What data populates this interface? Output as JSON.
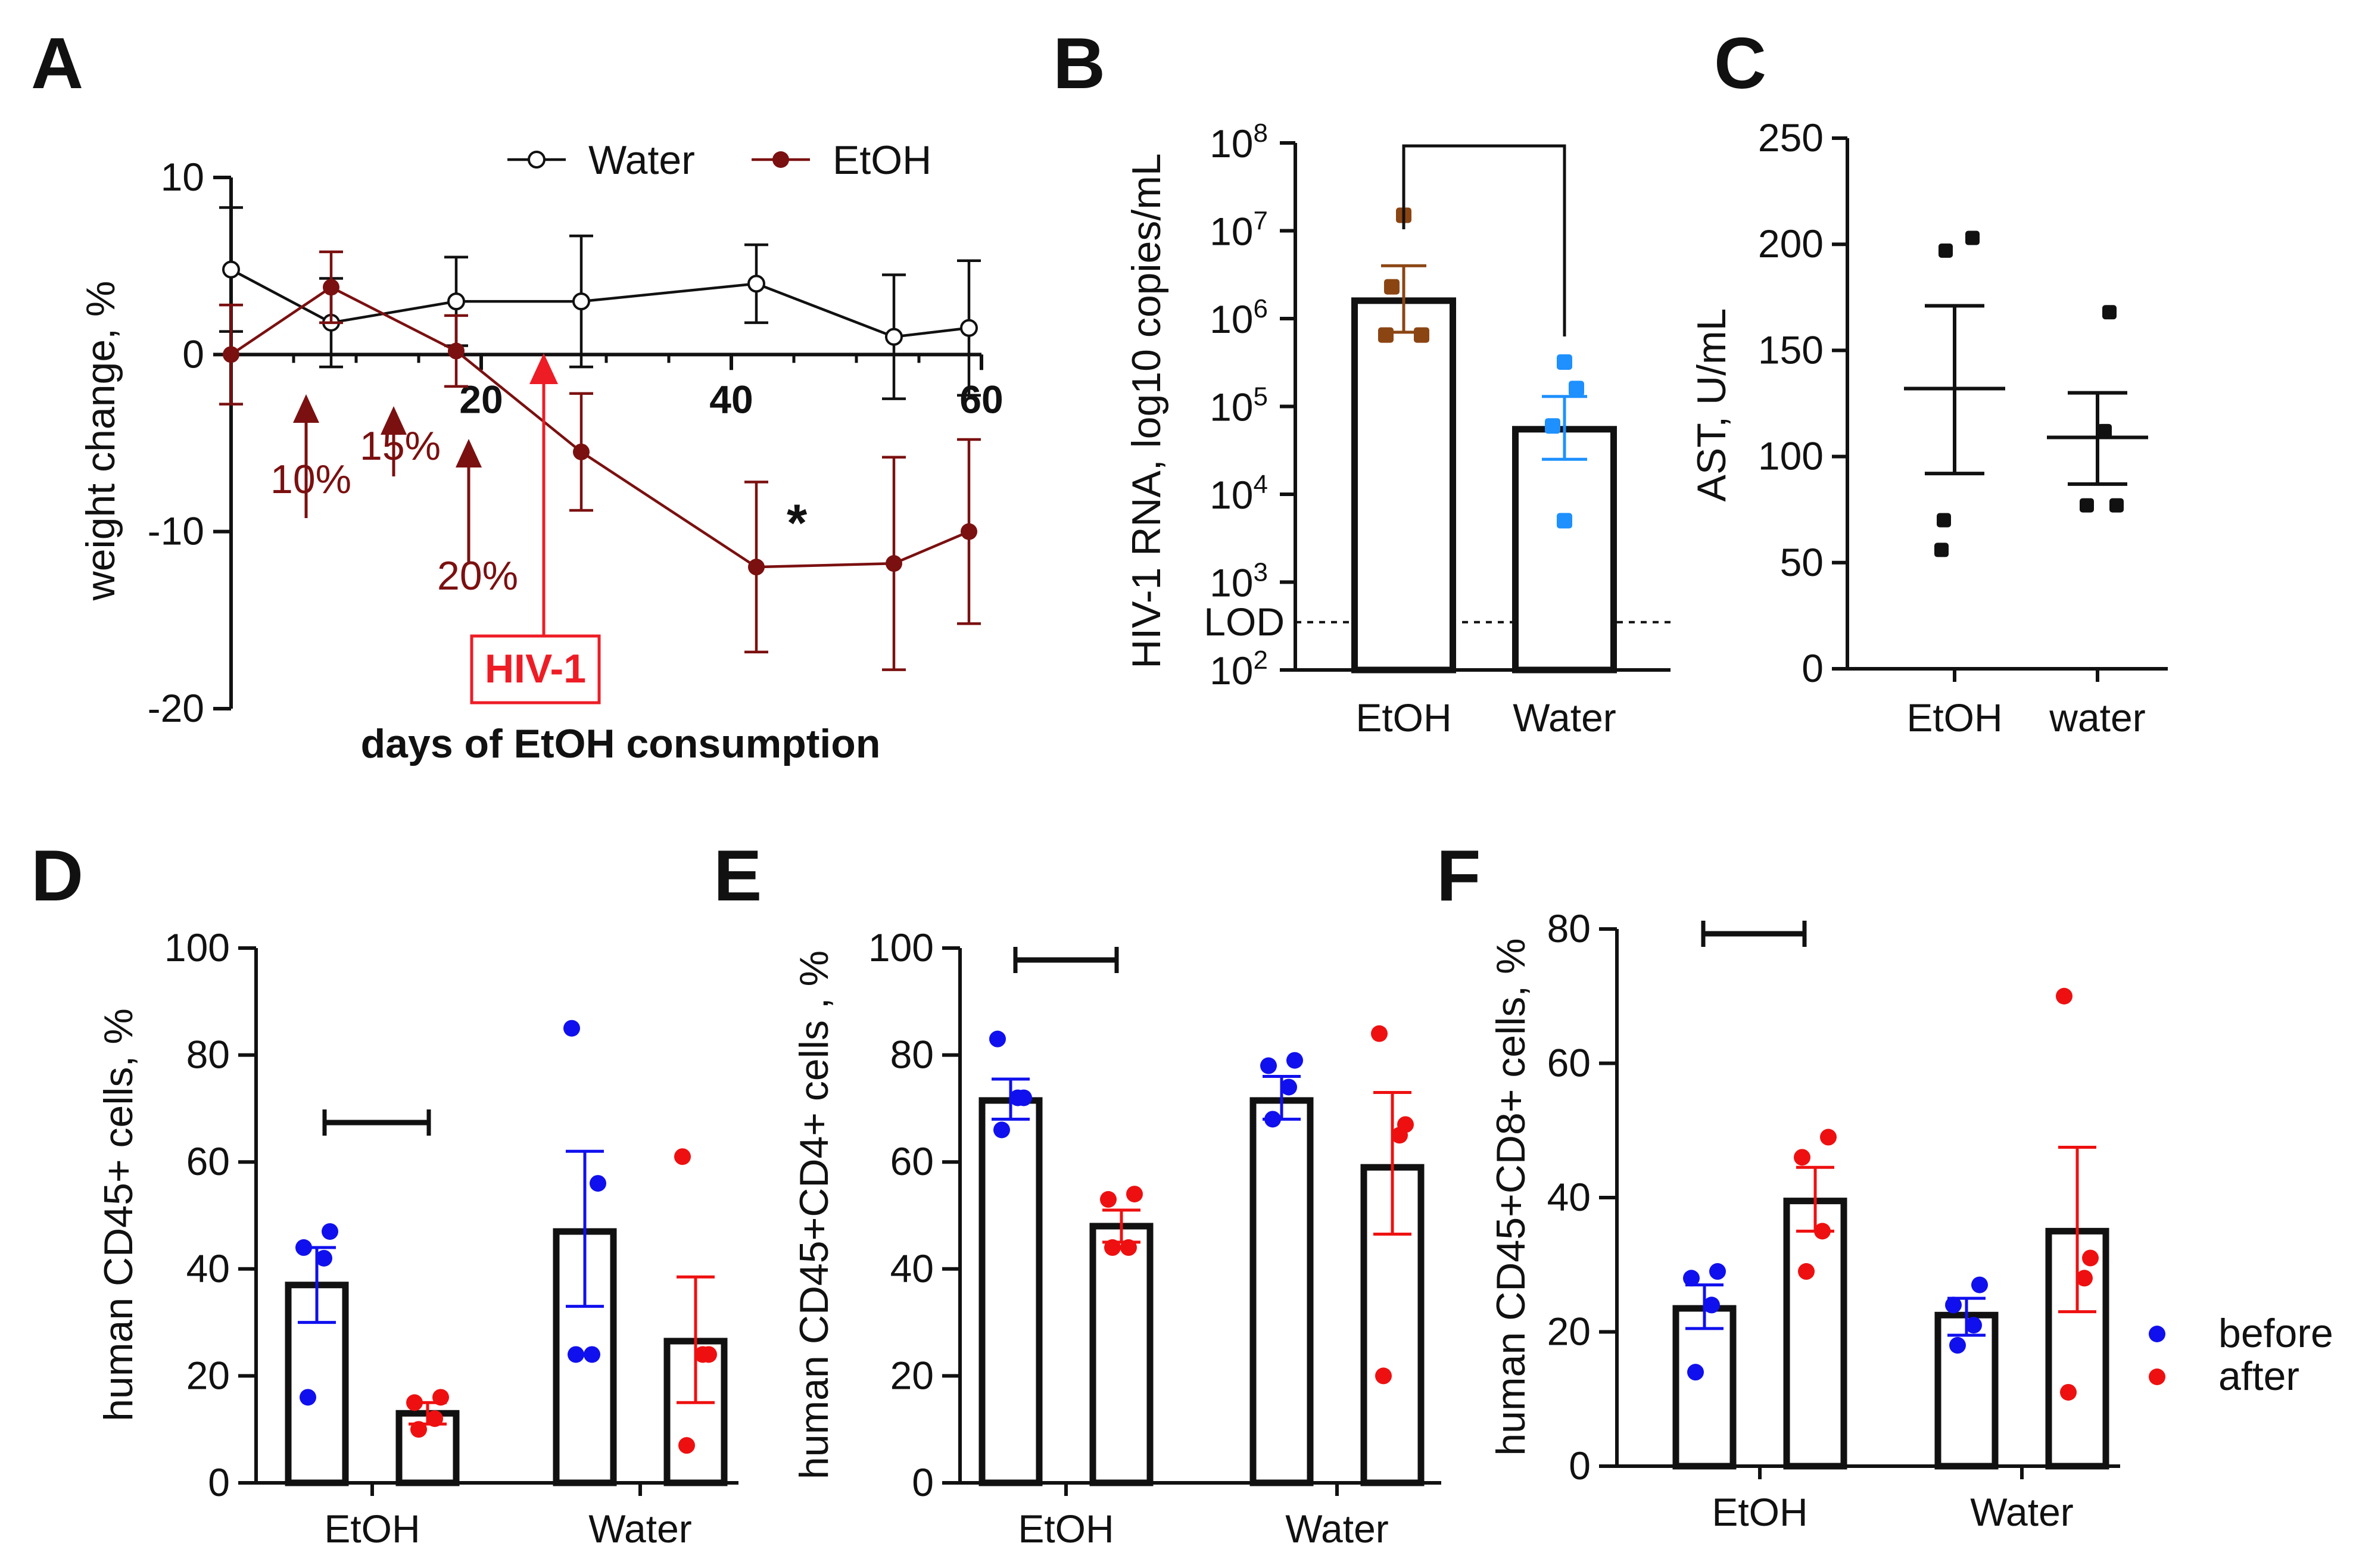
{
  "colors": {
    "water": "#111111",
    "etoh": "#7b1010",
    "hiv_red": "#ee1c25",
    "brown_point": "#8b4513",
    "blue_point": "#1e90ff",
    "before": "#1010ee",
    "after": "#ee1010"
  },
  "chart_data": [
    {
      "id": "A",
      "panel_label": "A",
      "type": "line",
      "xlabel": "days of EtOH consumption",
      "ylabel": "weight change, %",
      "xlim": [
        0,
        60
      ],
      "ylim": [
        -20,
        10
      ],
      "xticks": [
        "20",
        "40",
        "60"
      ],
      "yticks": [
        "10",
        "0",
        "-10",
        "-20"
      ],
      "series": [
        {
          "name": "Water",
          "x": [
            0,
            8,
            18,
            28,
            42,
            53,
            59
          ],
          "y": [
            4.8,
            1.8,
            3.0,
            3.0,
            4.0,
            1.0,
            1.5
          ],
          "err": [
            3.5,
            2.5,
            2.5,
            3.7,
            2.2,
            3.5,
            3.8
          ]
        },
        {
          "name": "EtOH",
          "x": [
            0,
            8,
            18,
            28,
            42,
            53,
            59
          ],
          "y": [
            0.0,
            3.8,
            0.2,
            -5.5,
            -12.0,
            -11.8,
            -10.0
          ],
          "err": [
            2.8,
            2.0,
            2.0,
            3.3,
            4.8,
            6.0,
            5.2
          ]
        }
      ],
      "annotations": {
        "concentration_steps": [
          {
            "label": "10%",
            "day": 6
          },
          {
            "label": "15%",
            "day": 13
          },
          {
            "label": "20%",
            "day": 19
          }
        ],
        "infection": {
          "label": "HIV-1",
          "day": 25
        },
        "significance": {
          "label": "*",
          "day": 43
        }
      }
    },
    {
      "id": "B",
      "panel_label": "B",
      "type": "bar",
      "scale": "log10",
      "ylabel": "HIV-1 RNA, log10 copies/mL",
      "ylim_exponent": [
        2,
        8
      ],
      "ytick_exponents": [
        "2",
        "3",
        "4",
        "5",
        "6",
        "7",
        "8"
      ],
      "lod_label": "LOD",
      "lod_value": 350,
      "categories": [
        "EtOH",
        "Water"
      ],
      "values": [
        1600000,
        55000
      ],
      "sem": [
        [
          700000,
          4000000
        ],
        [
          25000,
          130000
        ]
      ],
      "points": [
        [
          15000000,
          2300000,
          650000,
          650000
        ],
        [
          60000,
          160000,
          320000,
          5000
        ]
      ]
    },
    {
      "id": "C",
      "panel_label": "C",
      "type": "scatter",
      "ylabel": "AST, U/mL",
      "ylim": [
        0,
        250
      ],
      "yticks": [
        "0",
        "50",
        "100",
        "150",
        "200",
        "250"
      ],
      "categories": [
        "EtOH",
        "water"
      ],
      "means": [
        132,
        109
      ],
      "sem": [
        [
          92,
          171
        ],
        [
          87,
          130
        ]
      ],
      "points": [
        [
          197,
          203,
          70,
          56
        ],
        [
          168,
          112,
          77,
          77
        ]
      ]
    },
    {
      "id": "D",
      "panel_label": "D",
      "type": "bar",
      "ylabel": "human CD45+ cells, %",
      "ylim": [
        0,
        100
      ],
      "yticks": [
        "0",
        "20",
        "40",
        "60",
        "80",
        "100"
      ],
      "groups": [
        "EtOH",
        "Water"
      ],
      "series": [
        {
          "name": "before",
          "values": [
            37,
            47
          ],
          "sem": [
            [
              30,
              44
            ],
            [
              33,
              62
            ]
          ],
          "points": [
            [
              44,
              47,
              42,
              16
            ],
            [
              85,
              56,
              24,
              24
            ]
          ]
        },
        {
          "name": "after",
          "values": [
            13,
            26.5
          ],
          "sem": [
            [
              11,
              15
            ],
            [
              15,
              38.5
            ]
          ],
          "points": [
            [
              15,
              16,
              12,
              10
            ],
            [
              61,
              24,
              24,
              7
            ]
          ]
        }
      ],
      "significance_group": "EtOH"
    },
    {
      "id": "E",
      "panel_label": "E",
      "type": "bar",
      "ylabel": "human CD45+CD4+ cells , %",
      "ylim": [
        0,
        100
      ],
      "yticks": [
        "0",
        "20",
        "40",
        "60",
        "80",
        "100"
      ],
      "groups": [
        "EtOH",
        "Water"
      ],
      "series": [
        {
          "name": "before",
          "values": [
            71.5,
            71.5
          ],
          "sem": [
            [
              68,
              75.5
            ],
            [
              68,
              76
            ]
          ],
          "points": [
            [
              83,
              72,
              72,
              66
            ],
            [
              78,
              79,
              74,
              68
            ]
          ]
        },
        {
          "name": "after",
          "values": [
            48,
            59
          ],
          "sem": [
            [
              45,
              51
            ],
            [
              46.5,
              73
            ]
          ],
          "points": [
            [
              53,
              54,
              44,
              44
            ],
            [
              84,
              67,
              65,
              20
            ]
          ]
        }
      ],
      "significance_group": "EtOH"
    },
    {
      "id": "F",
      "panel_label": "F",
      "type": "bar",
      "ylabel": "human CD45+CD8+ cells, %",
      "ylim": [
        0,
        80
      ],
      "yticks": [
        "0",
        "20",
        "40",
        "60",
        "80"
      ],
      "groups": [
        "EtOH",
        "Water"
      ],
      "series": [
        {
          "name": "before",
          "values": [
            23.5,
            22.5
          ],
          "sem": [
            [
              20.5,
              27
            ],
            [
              19.5,
              25
            ]
          ],
          "points": [
            [
              28,
              29,
              24,
              14
            ],
            [
              24,
              27,
              21,
              18
            ]
          ]
        },
        {
          "name": "after",
          "values": [
            39.5,
            35
          ],
          "sem": [
            [
              35,
              44.5
            ],
            [
              23,
              47.5
            ]
          ],
          "points": [
            [
              46,
              49,
              35,
              29
            ],
            [
              70,
              31,
              28,
              11
            ]
          ]
        }
      ],
      "significance_group": "EtOH",
      "legend": [
        "before",
        "after"
      ]
    }
  ]
}
